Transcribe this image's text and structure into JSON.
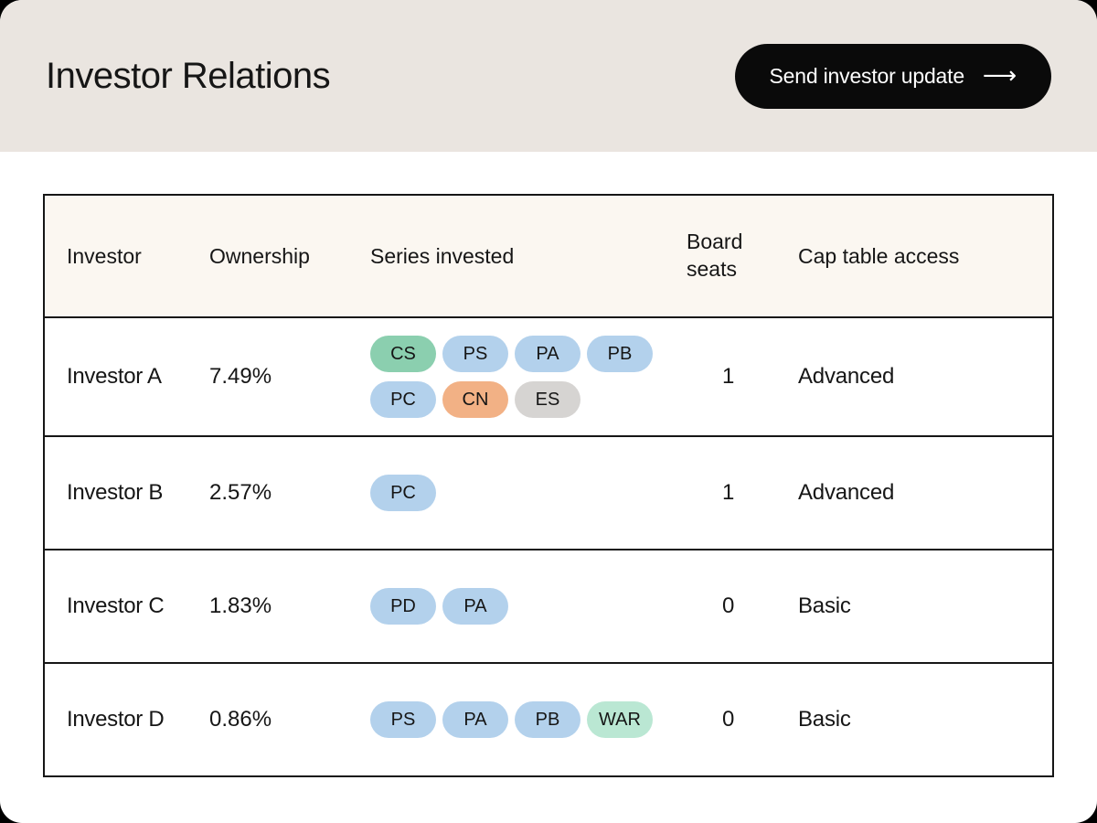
{
  "colors": {
    "page_outer": "#000000",
    "card_bg": "#ffffff",
    "header_bg": "#EAE5E0",
    "table_header_bg": "#FBF7F1",
    "text": "#161616",
    "border": "#161616",
    "button_bg": "#0a0a0a",
    "button_text": "#ffffff"
  },
  "header": {
    "title": "Investor Relations",
    "send_update_button": {
      "label": "Send investor update",
      "arrow_icon": "⟶"
    }
  },
  "table": {
    "chip_colors": {
      "green": "#8BCFAF",
      "blue": "#B3D1EC",
      "orange": "#F2B185",
      "gray": "#D6D4D2",
      "mint": "#BAE7D3"
    },
    "columns": [
      "Investor",
      "Ownership",
      "Series invested",
      "Board seats",
      "Cap table access"
    ],
    "rows": [
      {
        "investor": "Investor A",
        "ownership": "7.49%",
        "board_seats": "1",
        "cap_table_access": "Advanced",
        "series": [
          {
            "label": "CS",
            "color": "green"
          },
          {
            "label": "PS",
            "color": "blue"
          },
          {
            "label": "PA",
            "color": "blue"
          },
          {
            "label": "PB",
            "color": "blue"
          },
          {
            "label": "PC",
            "color": "blue"
          },
          {
            "label": "CN",
            "color": "orange"
          },
          {
            "label": "ES",
            "color": "gray"
          }
        ]
      },
      {
        "investor": "Investor B",
        "ownership": "2.57%",
        "board_seats": "1",
        "cap_table_access": "Advanced",
        "series": [
          {
            "label": "PC",
            "color": "blue"
          }
        ]
      },
      {
        "investor": "Investor C",
        "ownership": "1.83%",
        "board_seats": "0",
        "cap_table_access": "Basic",
        "series": [
          {
            "label": "PD",
            "color": "blue"
          },
          {
            "label": "PA",
            "color": "blue"
          }
        ]
      },
      {
        "investor": "Investor D",
        "ownership": "0.86%",
        "board_seats": "0",
        "cap_table_access": "Basic",
        "series": [
          {
            "label": "PS",
            "color": "blue"
          },
          {
            "label": "PA",
            "color": "blue"
          },
          {
            "label": "PB",
            "color": "blue"
          },
          {
            "label": "WAR",
            "color": "mint"
          }
        ]
      }
    ]
  }
}
